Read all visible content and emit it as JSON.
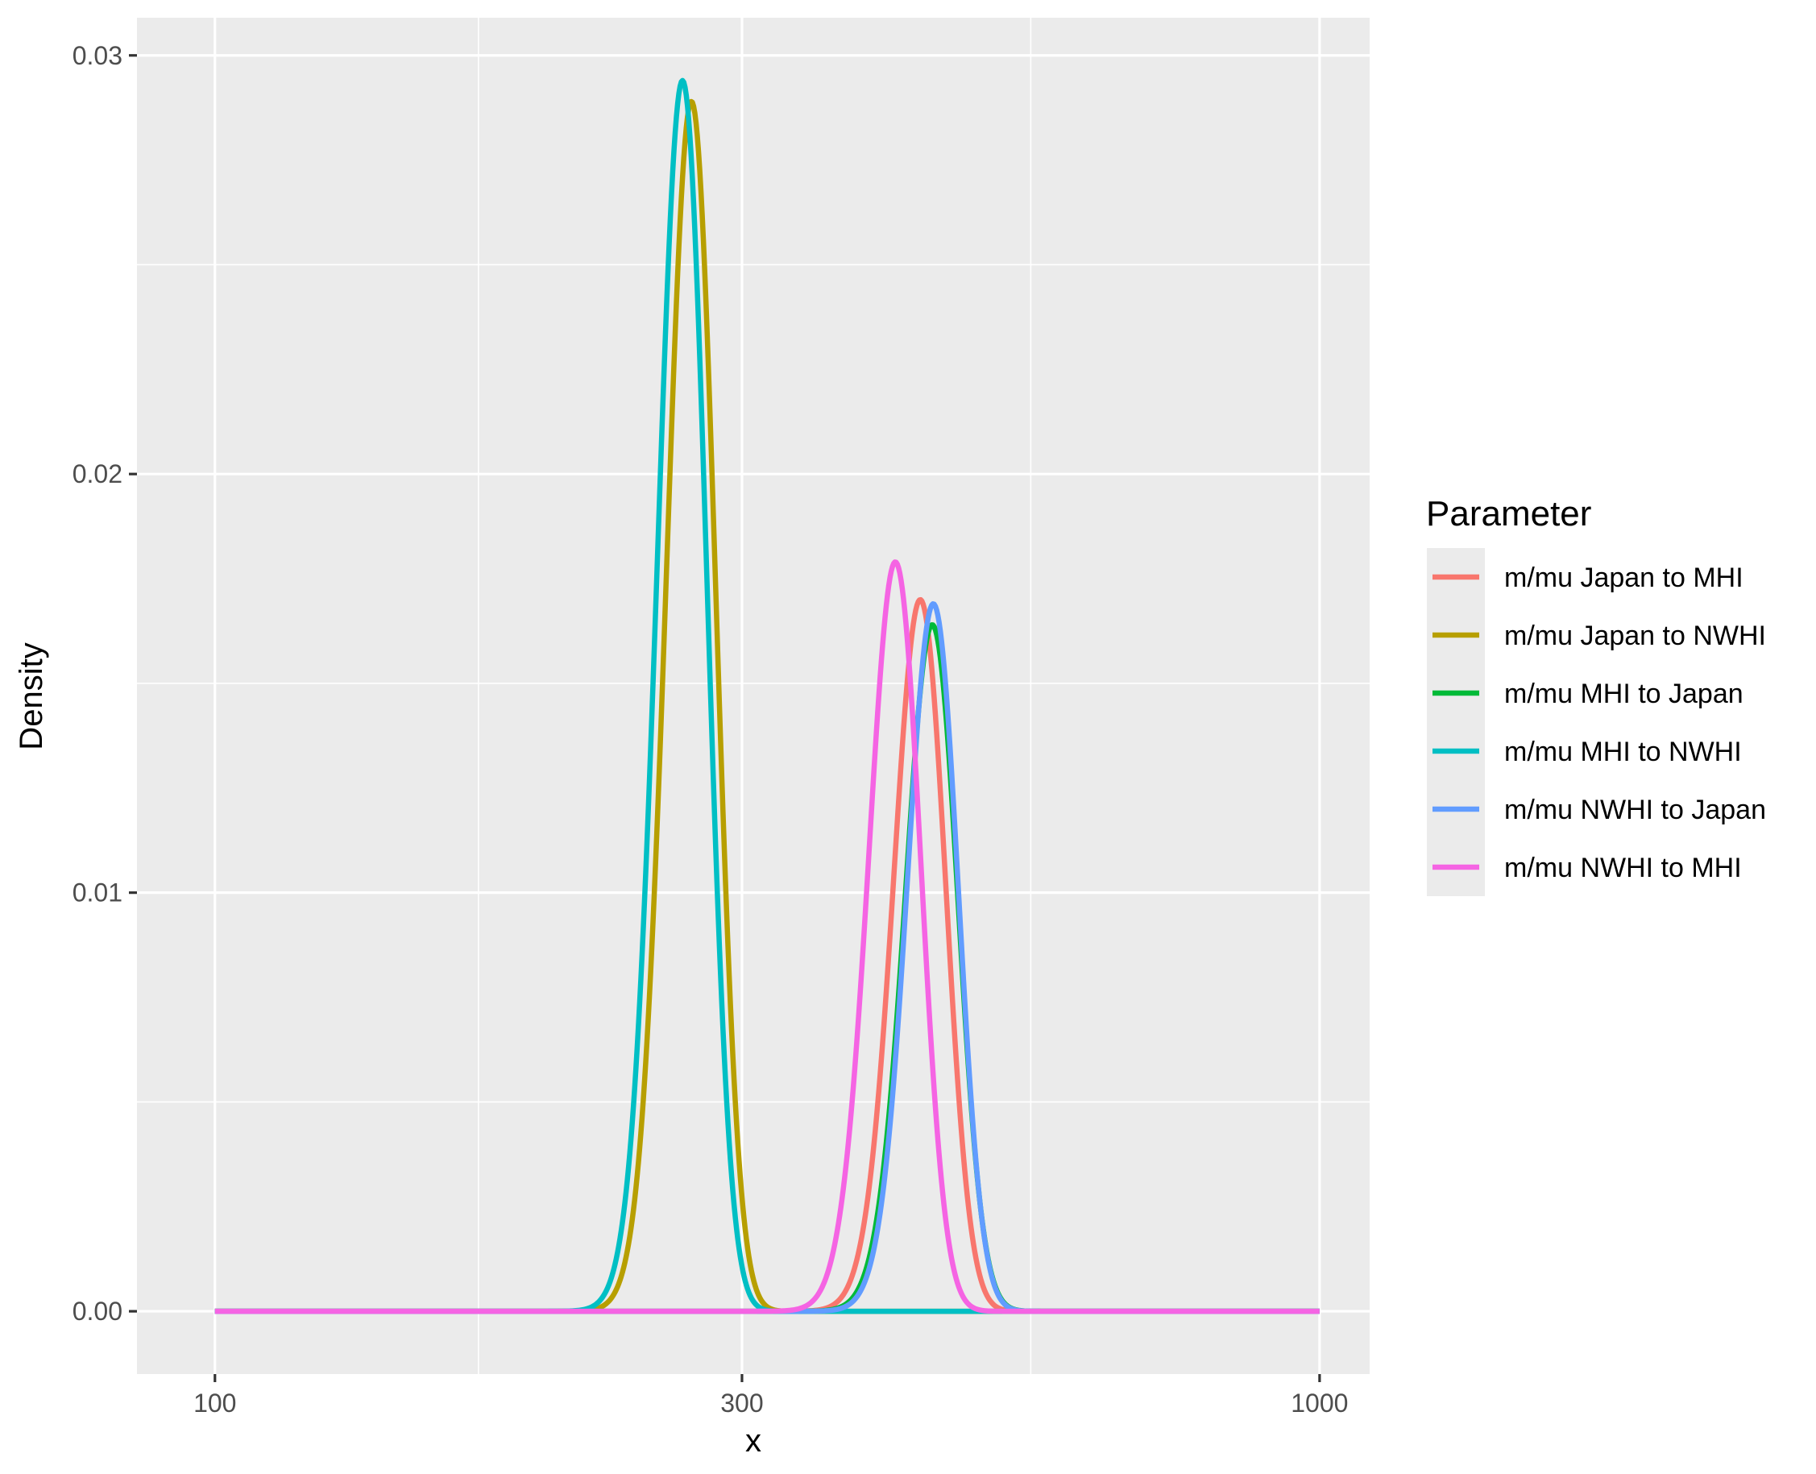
{
  "chart_data": {
    "type": "line",
    "xlabel": "x",
    "ylabel": "Density",
    "x_scale": "log10",
    "xlim": [
      85,
      1110
    ],
    "ylim": [
      -0.0015,
      0.0309
    ],
    "x_ticks": [
      {
        "value": 100,
        "label": "100"
      },
      {
        "value": 300,
        "label": "300"
      },
      {
        "value": 1000,
        "label": "1000"
      }
    ],
    "x_minor_gridlines": [
      173.2,
      547.7
    ],
    "y_ticks": [
      {
        "value": 0.0,
        "label": "0.00"
      },
      {
        "value": 0.01,
        "label": "0.01"
      },
      {
        "value": 0.02,
        "label": "0.02"
      },
      {
        "value": 0.03,
        "label": "0.03"
      }
    ],
    "y_minor_gridlines": [
      0.005,
      0.015,
      0.025
    ],
    "grid": true,
    "background": "#ebebeb",
    "legend": {
      "title": "Parameter",
      "placement": "right"
    },
    "x_range_drawn": [
      100,
      1000
    ],
    "series": [
      {
        "name": "m/mu Japan to MHI",
        "color": "#F8766D",
        "peak_x": 435,
        "peak_density": 0.017,
        "sd_x": 23.5
      },
      {
        "name": "m/mu Japan to NWHI",
        "color": "#B79F00",
        "peak_x": 270,
        "peak_density": 0.0289,
        "sd_x": 13.8
      },
      {
        "name": "m/mu MHI to Japan",
        "color": "#00BA38",
        "peak_x": 446,
        "peak_density": 0.0164,
        "sd_x": 24.3
      },
      {
        "name": "m/mu MHI to NWHI",
        "color": "#00BFC4",
        "peak_x": 265,
        "peak_density": 0.0294,
        "sd_x": 13.6
      },
      {
        "name": "m/mu NWHI to Japan",
        "color": "#619CFF",
        "peak_x": 447,
        "peak_density": 0.0169,
        "sd_x": 23.6
      },
      {
        "name": "m/mu NWHI to MHI",
        "color": "#F564E3",
        "peak_x": 413,
        "peak_density": 0.0179,
        "sd_x": 22.3
      }
    ]
  }
}
